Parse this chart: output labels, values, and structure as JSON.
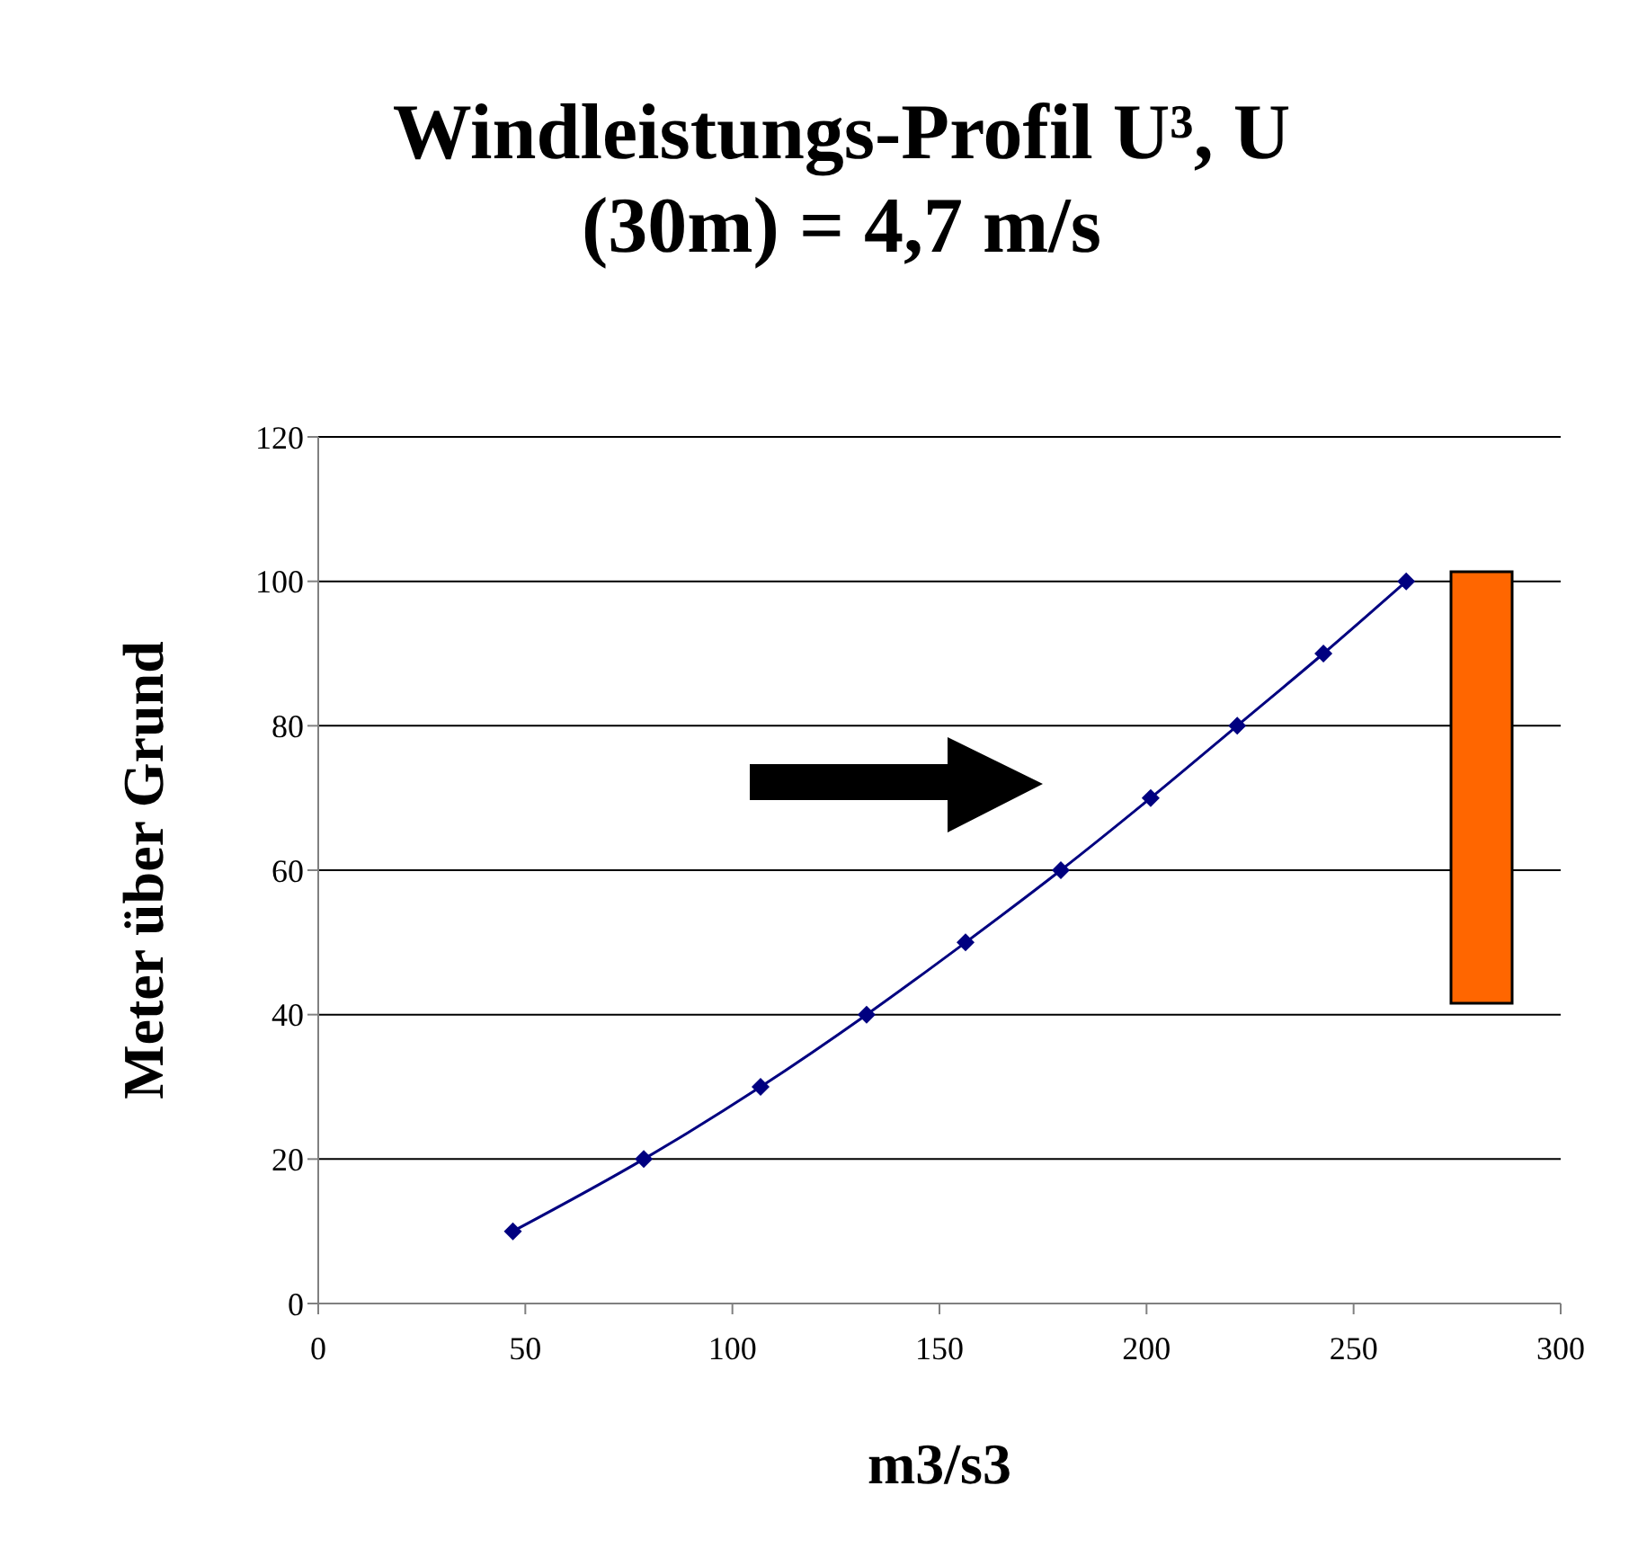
{
  "chart_data": {
    "type": "line",
    "title": "Windleistungs-Profil U³, U (30m) = 4,7 m/s",
    "xlabel": "m3/s3",
    "ylabel": "Meter über Grund",
    "series": [
      {
        "color": "#000080",
        "x": [
          47,
          78.6,
          106.8,
          132.4,
          156.3,
          179.3,
          201,
          221.9,
          242.7,
          262.7
        ],
        "values": [
          10,
          20,
          30,
          40,
          50,
          60,
          70,
          80,
          90,
          100
        ]
      }
    ],
    "xlim": [
      0,
      300
    ],
    "xticks": [
      0,
      50,
      100,
      150,
      200,
      250,
      300
    ],
    "ylim": [
      0,
      120
    ],
    "yticks": [
      0,
      20,
      40,
      60,
      80,
      100,
      120
    ],
    "grid": "y",
    "legend": false,
    "marker": "diamond",
    "line_style": "solid"
  }
}
